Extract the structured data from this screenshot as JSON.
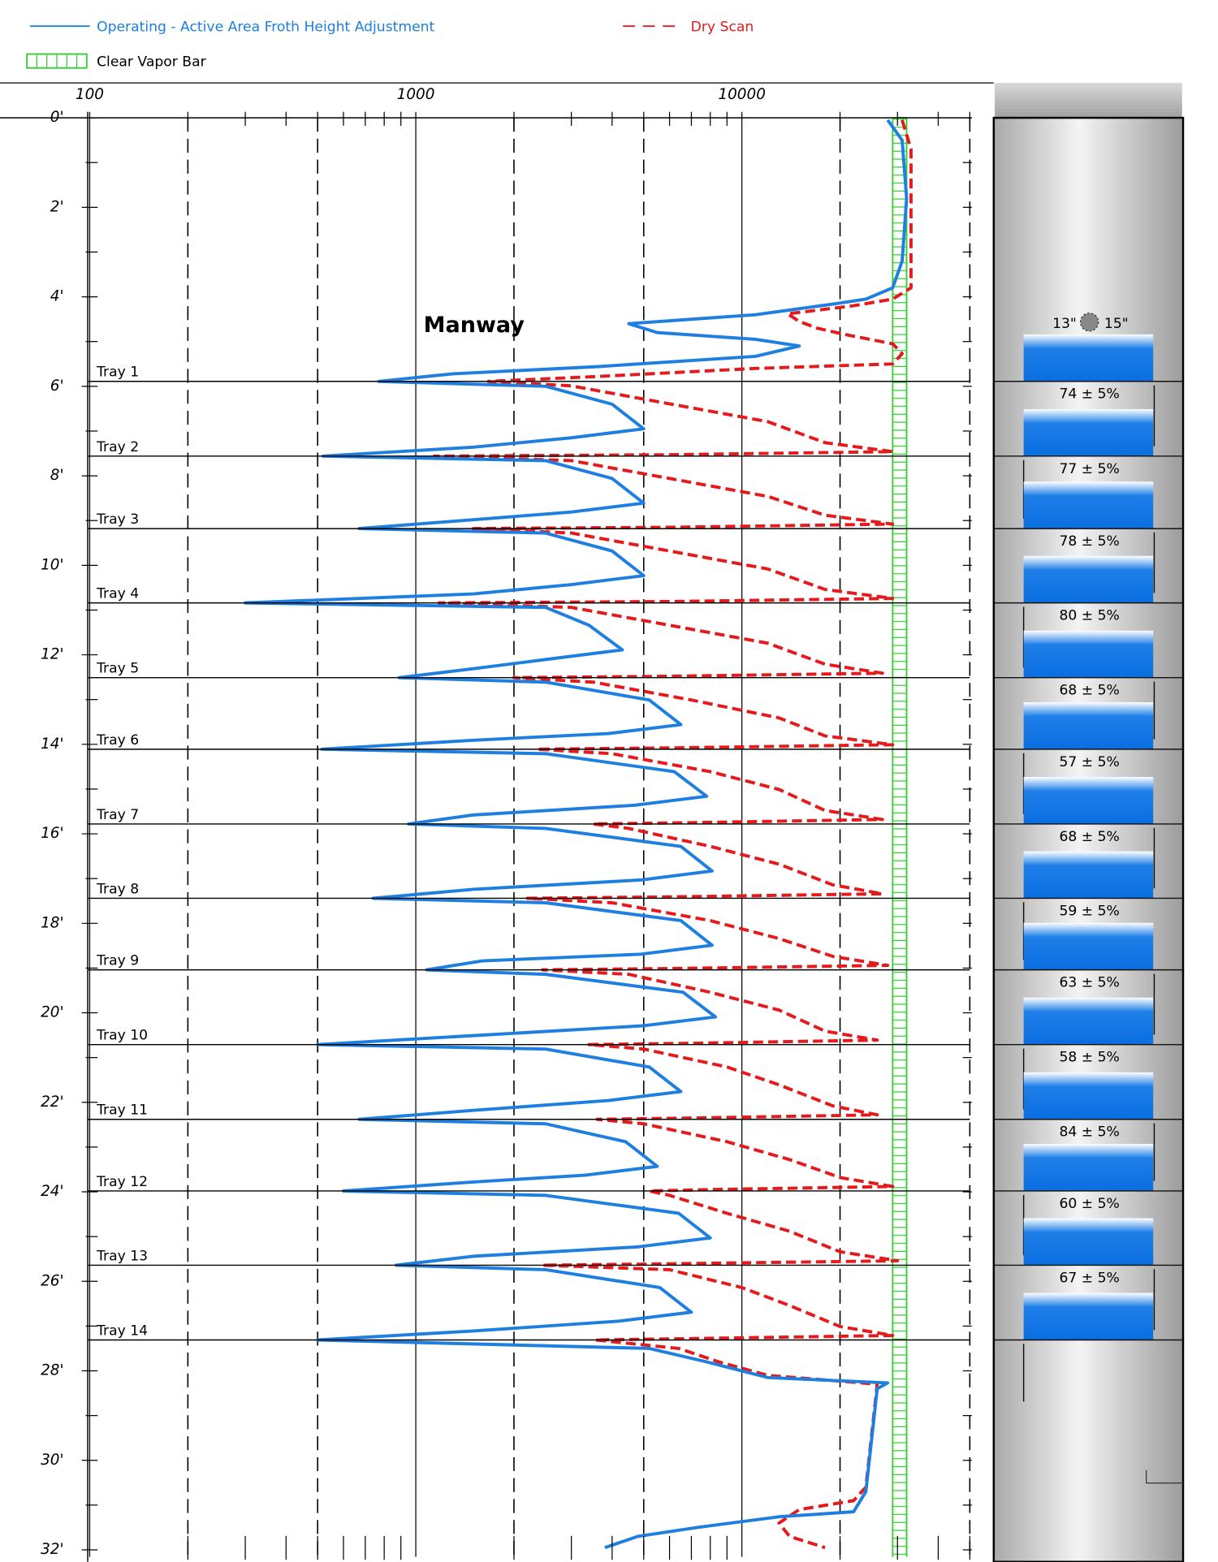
{
  "chart_data": {
    "type": "line",
    "xscale": "log",
    "xlim": [
      100,
      50000
    ],
    "xticks": [
      100,
      1000,
      10000
    ],
    "xgrid_dashed": [
      200,
      500,
      2000,
      5000,
      20000,
      50000
    ],
    "xminor_ticks": [
      200,
      300,
      400,
      500,
      600,
      700,
      800,
      900,
      2000,
      3000,
      4000,
      5000,
      6000,
      7000,
      8000,
      9000,
      20000,
      30000,
      40000,
      50000
    ],
    "ylim": [
      0,
      32
    ],
    "y_inverted": true,
    "yticks": [
      {
        "value": 0,
        "label": "0'"
      },
      {
        "value": 2,
        "label": "2'"
      },
      {
        "value": 4,
        "label": "4'"
      },
      {
        "value": 6,
        "label": "6'"
      },
      {
        "value": 8,
        "label": "8'"
      },
      {
        "value": 10,
        "label": "10'"
      },
      {
        "value": 12,
        "label": "12'"
      },
      {
        "value": 14,
        "label": "14'"
      },
      {
        "value": 16,
        "label": "16'"
      },
      {
        "value": 18,
        "label": "18'"
      },
      {
        "value": 20,
        "label": "20'"
      },
      {
        "value": 22,
        "label": "22'"
      },
      {
        "value": 24,
        "label": "24'"
      },
      {
        "value": 26,
        "label": "26'"
      },
      {
        "value": 28,
        "label": "28'"
      },
      {
        "value": 30,
        "label": "30'"
      },
      {
        "value": 32,
        "label": "32'"
      }
    ],
    "yminor_ticks": [
      1,
      3,
      5,
      7,
      9,
      11,
      13,
      15,
      17,
      19,
      21,
      23,
      25,
      27,
      29,
      31
    ],
    "series": [
      {
        "name": "Operating - Active Area Froth Height Adjustment",
        "color": "#1f7fe0",
        "style": "solid",
        "y": [
          0.05,
          0.5,
          1.8,
          3.2,
          3.8,
          4.05,
          4.15,
          4.4,
          4.6,
          4.8,
          4.95,
          5.1,
          5.33,
          5.56,
          5.72,
          5.89,
          6.0,
          6.4,
          6.95,
          7.15,
          7.36,
          7.56,
          7.66,
          8.06,
          8.61,
          8.81,
          8.98,
          9.18,
          9.28,
          9.68,
          10.23,
          10.43,
          10.64,
          10.84,
          10.94,
          11.34,
          11.89,
          12.09,
          12.31,
          12.51,
          12.61,
          13.01,
          13.56,
          13.76,
          13.91,
          14.11,
          14.21,
          14.61,
          15.16,
          15.36,
          15.58,
          15.78,
          15.88,
          16.28,
          16.83,
          17.03,
          17.24,
          17.44,
          17.54,
          17.94,
          18.49,
          18.69,
          18.84,
          19.04,
          19.14,
          19.54,
          20.09,
          20.29,
          20.51,
          20.71,
          20.81,
          21.21,
          21.76,
          21.96,
          22.18,
          22.38,
          22.48,
          22.88,
          23.43,
          23.63,
          23.78,
          23.98,
          24.08,
          24.48,
          25.03,
          25.23,
          25.44,
          25.64,
          25.74,
          26.14,
          26.69,
          26.89,
          27.11,
          27.31,
          27.5,
          27.8,
          28.15,
          28.27,
          28.4,
          30.7,
          31.15,
          31.26,
          31.5,
          31.7,
          31.95
        ],
        "values": [
          28000,
          31000,
          32000,
          31000,
          29000,
          24000,
          19500,
          11000,
          4500,
          5500,
          11000,
          15000,
          11000,
          3600,
          1300,
          770,
          2500,
          4000,
          5000,
          3000,
          1500,
          520,
          2500,
          4000,
          5000,
          3000,
          1500,
          670,
          2500,
          4000,
          5000,
          3000,
          1500,
          300,
          2500,
          3400,
          4300,
          2600,
          1500,
          890,
          2500,
          5200,
          6500,
          3900,
          1500,
          515,
          2500,
          6200,
          7800,
          4700,
          1500,
          950,
          2500,
          6500,
          8100,
          4900,
          1500,
          740,
          2500,
          6500,
          8100,
          4900,
          1600,
          1080,
          2500,
          6600,
          8300,
          5000,
          1500,
          500,
          2500,
          5200,
          6500,
          3900,
          1500,
          670,
          2500,
          4400,
          5500,
          3300,
          1500,
          600,
          2500,
          6400,
          8000,
          4800,
          1500,
          870,
          2500,
          5600,
          7000,
          4200,
          1500,
          500,
          5200,
          7800,
          12000,
          28000,
          26000,
          24000,
          22000,
          13000,
          7300,
          4800,
          3800
        ]
      },
      {
        "name": "Dry Scan",
        "color": "#e41a1c",
        "style": "dashed",
        "y": [
          0.05,
          0.7,
          3.8,
          4.05,
          4.2,
          4.38,
          4.55,
          4.7,
          4.85,
          5.05,
          5.27,
          5.5,
          5.6,
          5.78,
          5.89,
          5.99,
          6.39,
          6.79,
          7.26,
          7.46,
          7.53,
          7.56,
          7.66,
          8.06,
          8.46,
          8.88,
          9.08,
          9.15,
          9.18,
          9.28,
          9.68,
          10.08,
          10.54,
          10.74,
          10.81,
          10.84,
          10.94,
          11.34,
          11.74,
          12.21,
          12.41,
          12.48,
          12.51,
          12.61,
          13.01,
          13.41,
          13.81,
          14.01,
          14.08,
          14.11,
          14.21,
          14.61,
          15.01,
          15.48,
          15.68,
          15.75,
          15.78,
          15.88,
          16.28,
          16.68,
          17.14,
          17.34,
          17.41,
          17.44,
          17.54,
          17.94,
          18.34,
          18.74,
          18.94,
          19.01,
          19.04,
          19.14,
          19.54,
          19.94,
          20.41,
          20.61,
          20.68,
          20.71,
          20.81,
          21.21,
          21.61,
          22.08,
          22.28,
          22.35,
          22.38,
          22.48,
          22.88,
          23.28,
          23.68,
          23.88,
          23.95,
          23.98,
          24.08,
          24.48,
          24.88,
          25.34,
          25.54,
          25.61,
          25.64,
          25.74,
          26.14,
          26.54,
          27.01,
          27.21,
          27.28,
          27.31,
          27.5,
          27.8,
          28.1,
          28.3,
          30.6,
          30.9,
          31.1,
          31.4,
          31.7,
          31.95
        ],
        "values": [
          31000,
          33000,
          33000,
          29000,
          22000,
          13800,
          15000,
          17000,
          21000,
          29000,
          31000,
          29000,
          11000,
          3600,
          1670,
          3000,
          6000,
          12000,
          18000,
          29000,
          6000,
          1140,
          3000,
          6000,
          12000,
          18000,
          29000,
          6000,
          1500,
          3000,
          6000,
          12000,
          18000,
          29000,
          6000,
          1180,
          3000,
          6000,
          12000,
          18000,
          27000,
          6000,
          2000,
          3500,
          7000,
          13000,
          18000,
          29000,
          6000,
          2350,
          4000,
          8000,
          13000,
          18000,
          27000,
          7000,
          3500,
          4500,
          8000,
          13000,
          19000,
          27000,
          6000,
          2200,
          4000,
          8000,
          13000,
          19000,
          28000,
          6000,
          2450,
          4500,
          8000,
          13000,
          18000,
          26000,
          7000,
          3400,
          5000,
          9000,
          13000,
          19000,
          26000,
          7000,
          3600,
          5000,
          9000,
          14000,
          20000,
          29000,
          8000,
          5200,
          6000,
          9000,
          14000,
          20000,
          30000,
          6000,
          2450,
          6000,
          10000,
          14000,
          20000,
          29000,
          7000,
          3550,
          6400,
          8500,
          12000,
          26000,
          24000,
          22000,
          15000,
          13000,
          14000,
          18000
        ]
      }
    ],
    "clear_vapor_bar": {
      "name": "Clear Vapor Bar",
      "color": "#33cc33",
      "range": [
        29000,
        32000
      ]
    },
    "annotation": "Manway",
    "trays": [
      {
        "label": "Tray 1",
        "depth": 5.89
      },
      {
        "label": "Tray 2",
        "depth": 7.56
      },
      {
        "label": "Tray 3",
        "depth": 9.18
      },
      {
        "label": "Tray 4",
        "depth": 10.84
      },
      {
        "label": "Tray 5",
        "depth": 12.51
      },
      {
        "label": "Tray 6",
        "depth": 14.11
      },
      {
        "label": "Tray 7",
        "depth": 15.78
      },
      {
        "label": "Tray 8",
        "depth": 17.44
      },
      {
        "label": "Tray 9",
        "depth": 19.04
      },
      {
        "label": "Tray 10",
        "depth": 20.71
      },
      {
        "label": "Tray 11",
        "depth": 22.38
      },
      {
        "label": "Tray 12",
        "depth": 23.98
      },
      {
        "label": "Tray 13",
        "depth": 25.64
      },
      {
        "label": "Tray 14",
        "depth": 27.31
      }
    ],
    "column": {
      "top_labels": [
        "13\"",
        "15\""
      ],
      "tray_percent_labels": [
        "74 ± 5%",
        "77 ± 5%",
        "78 ± 5%",
        "80 ± 5%",
        "68 ± 5%",
        "57 ± 5%",
        "68 ± 5%",
        "59 ± 5%",
        "63 ± 5%",
        "58 ± 5%",
        "84 ± 5%",
        "60 ± 5%",
        "67 ± 5%"
      ]
    }
  }
}
